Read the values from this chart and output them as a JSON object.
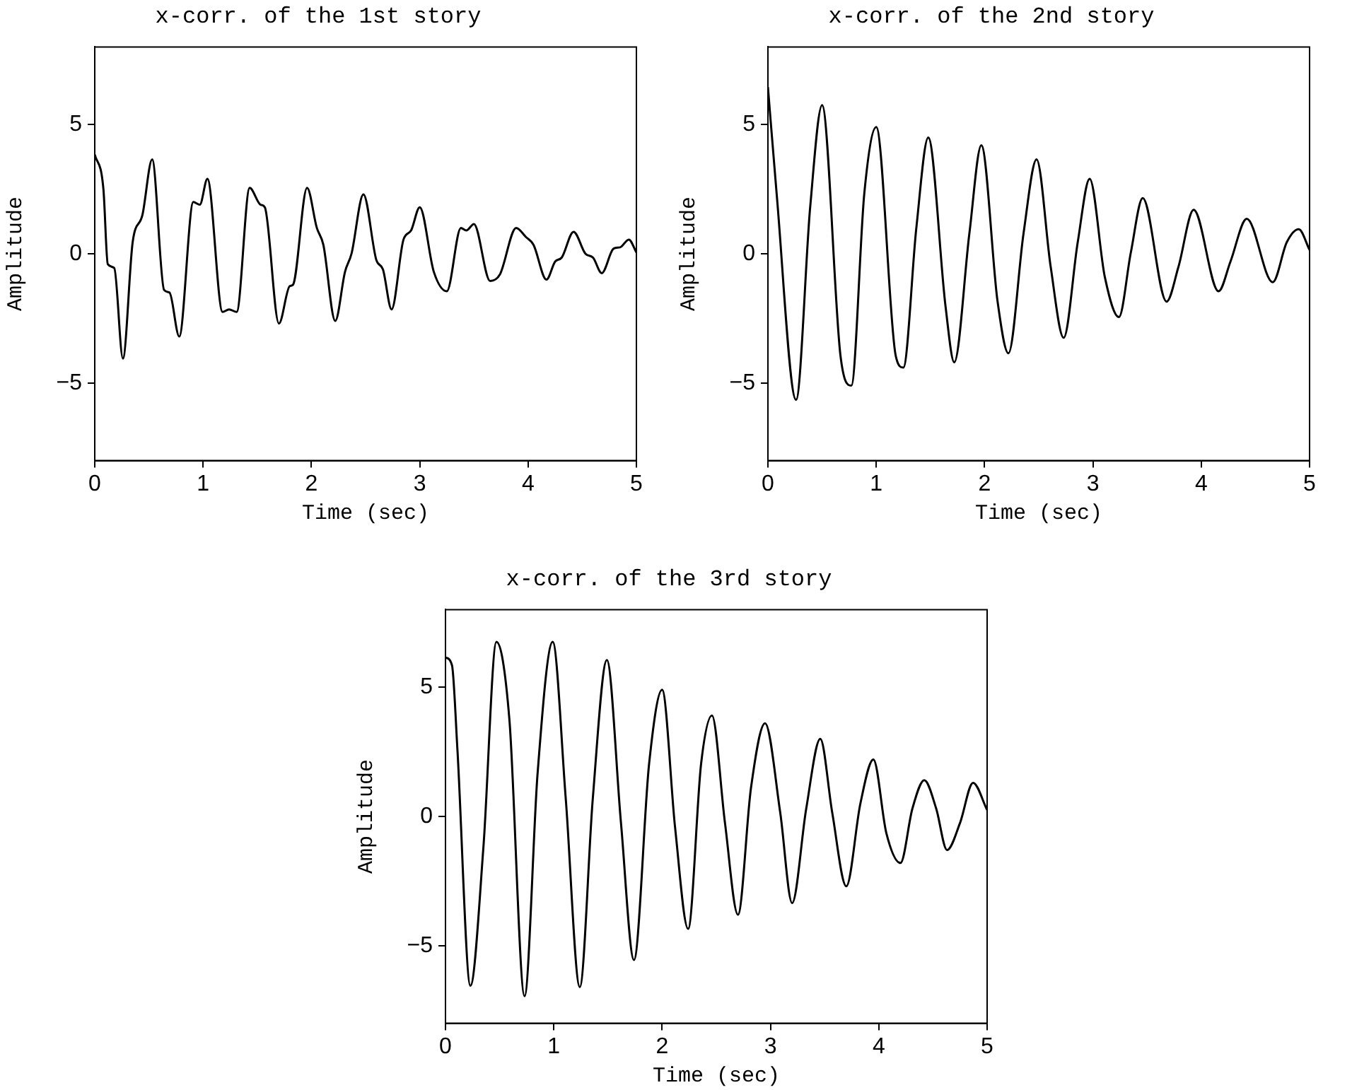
{
  "chart_data": [
    {
      "type": "line",
      "title": "x-corr. of the 1st story",
      "xlabel": "Time (sec)",
      "ylabel": "Amplitude",
      "xlim": [
        0,
        5
      ],
      "xticks": [
        0,
        1,
        2,
        3,
        4,
        5
      ],
      "ylim": [
        -8,
        8
      ],
      "yticks": [
        -5,
        0,
        5
      ],
      "grid": false,
      "legend": false,
      "marker": "none",
      "series": [
        {
          "color": "#000000",
          "x": [
            0,
            0.08,
            0.12,
            0.18,
            0.26,
            0.35,
            0.44,
            0.53,
            0.64,
            0.69,
            0.78,
            0.91,
            0.97,
            1.04,
            1.18,
            1.24,
            1.31,
            1.43,
            1.53,
            1.57,
            1.7,
            1.8,
            1.83,
            1.96,
            2.05,
            2.11,
            2.22,
            2.31,
            2.37,
            2.48,
            2.6,
            2.66,
            2.74,
            2.85,
            2.92,
            3.0,
            3.13,
            3.25,
            3.38,
            3.43,
            3.5,
            3.65,
            3.74,
            3.89,
            3.98,
            4.05,
            4.17,
            4.25,
            4.31,
            4.42,
            4.53,
            4.6,
            4.68,
            4.79,
            4.85,
            4.93,
            5.0
          ],
          "values": [
            3.84,
            2.5,
            -0.4,
            -0.55,
            -4.05,
            0.45,
            1.5,
            3.65,
            -1.4,
            -1.5,
            -3.2,
            2.0,
            1.9,
            2.9,
            -2.25,
            -2.15,
            -2.25,
            2.55,
            1.9,
            1.8,
            -2.7,
            -1.25,
            -1.2,
            2.55,
            1.0,
            0.35,
            -2.6,
            -0.7,
            0,
            2.3,
            -0.25,
            -0.6,
            -2.15,
            0.55,
            0.9,
            1.8,
            -0.7,
            -1.45,
            1.0,
            0.9,
            1.15,
            -1.05,
            -0.8,
            1.0,
            0.65,
            0.35,
            -1.0,
            -0.3,
            -0.15,
            0.85,
            0,
            -0.15,
            -0.75,
            0.2,
            0.25,
            0.55,
            0.05
          ]
        }
      ]
    },
    {
      "type": "line",
      "title": "x-corr. of the 2nd story",
      "xlabel": "Time (sec)",
      "ylabel": "Amplitude",
      "xlim": [
        0,
        5
      ],
      "xticks": [
        0,
        1,
        2,
        3,
        4,
        5
      ],
      "ylim": [
        -8,
        8
      ],
      "yticks": [
        -5,
        0,
        5
      ],
      "grid": false,
      "legend": false,
      "marker": "none",
      "series": [
        {
          "color": "#000000",
          "x": [
            0,
            0.08,
            0.26,
            0.39,
            0.5,
            0.67,
            0.77,
            0.89,
            1.0,
            1.18,
            1.25,
            1.37,
            1.48,
            1.64,
            1.72,
            1.86,
            1.97,
            2.12,
            2.22,
            2.36,
            2.48,
            2.61,
            2.73,
            2.86,
            2.97,
            3.11,
            3.24,
            3.35,
            3.46,
            3.68,
            3.79,
            3.93,
            4.16,
            4.27,
            4.42,
            4.66,
            4.79,
            4.9,
            5.0
          ],
          "values": [
            6.45,
            2.35,
            -5.65,
            1.8,
            5.75,
            -3.95,
            -5.1,
            2.35,
            4.9,
            -3.95,
            -4.4,
            1.0,
            4.5,
            -2.05,
            -4.2,
            0.8,
            4.2,
            -1.85,
            -3.85,
            0.8,
            3.65,
            -0.5,
            -3.25,
            0.45,
            2.9,
            -0.9,
            -2.45,
            0.05,
            2.15,
            -1.85,
            -0.5,
            1.7,
            -1.45,
            -0.3,
            1.35,
            -1.1,
            0.45,
            0.95,
            0.15
          ]
        }
      ]
    },
    {
      "type": "line",
      "title": "x-corr. of the 3rd story",
      "xlabel": "Time (sec)",
      "ylabel": "Amplitude",
      "xlim": [
        0,
        5
      ],
      "xticks": [
        0,
        1,
        2,
        3,
        4,
        5
      ],
      "ylim": [
        -8,
        8
      ],
      "yticks": [
        -5,
        0,
        5
      ],
      "grid": false,
      "legend": false,
      "marker": "none",
      "series": [
        {
          "color": "#000000",
          "x": [
            0,
            0.06,
            0.11,
            0.23,
            0.35,
            0.47,
            0.59,
            0.73,
            0.85,
            0.99,
            1.11,
            1.24,
            1.36,
            1.49,
            1.62,
            1.74,
            1.88,
            2.0,
            2.12,
            2.24,
            2.36,
            2.46,
            2.58,
            2.7,
            2.82,
            2.95,
            3.09,
            3.2,
            3.33,
            3.46,
            3.57,
            3.7,
            3.83,
            3.95,
            4.07,
            4.2,
            4.31,
            4.42,
            4.53,
            4.63,
            4.75,
            4.87,
            5.0
          ],
          "values": [
            6.15,
            5.85,
            2.6,
            -6.55,
            -1.2,
            6.75,
            3.75,
            -6.95,
            1.65,
            6.75,
            0.7,
            -6.6,
            0.7,
            6.05,
            -0.25,
            -5.55,
            2.05,
            4.9,
            -0.45,
            -4.35,
            2.05,
            3.9,
            -0.25,
            -3.8,
            1.1,
            3.6,
            0.15,
            -3.35,
            0.3,
            3.0,
            0.15,
            -2.7,
            0.5,
            2.2,
            -0.65,
            -1.8,
            0.3,
            1.4,
            0.3,
            -1.3,
            -0.25,
            1.3,
            0.25
          ]
        }
      ]
    }
  ]
}
